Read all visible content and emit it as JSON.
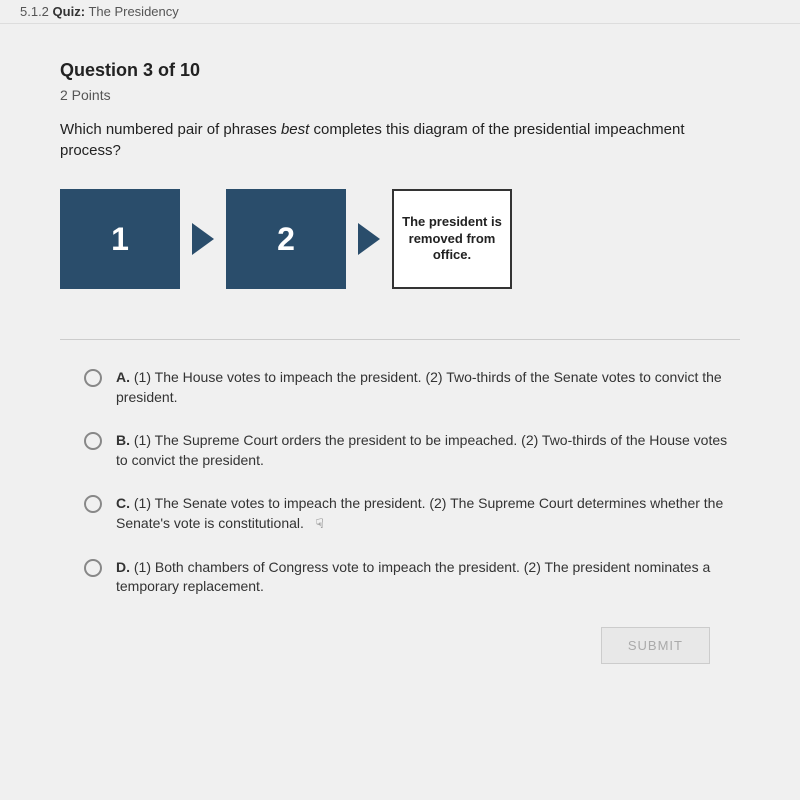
{
  "header": {
    "section": "5.1.2",
    "quiz_label": "Quiz:",
    "quiz_title": "The Presidency"
  },
  "question": {
    "number_label": "Question 3 of 10",
    "points": "2 Points",
    "stem_part1": "Which numbered pair of phrases ",
    "stem_italic": "best",
    "stem_part2": " completes this diagram of the presidential impeachment process?"
  },
  "diagram": {
    "box1": "1",
    "box2": "2",
    "box3": "The president is removed from office.",
    "box_fill_color": "#2a4d6b",
    "arrow_color": "#2a4d6b"
  },
  "options": [
    {
      "letter": "A.",
      "text": "(1) The House votes to impeach the president. (2) Two-thirds of the Senate votes to convict the president."
    },
    {
      "letter": "B.",
      "text": "(1) The Supreme Court orders the president to be impeached. (2) Two-thirds of the House votes to convict the president."
    },
    {
      "letter": "C.",
      "text": "(1) The Senate votes to impeach the president. (2) The Supreme Court determines whether the Senate's vote is constitutional."
    },
    {
      "letter": "D.",
      "text": "(1) Both chambers of Congress vote to impeach the president. (2) The president nominates a temporary replacement."
    }
  ],
  "submit_label": "SUBMIT",
  "cursor_glyph": "☟"
}
